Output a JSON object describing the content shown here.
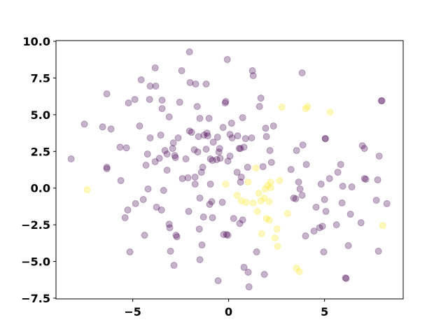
{
  "chart_data": {
    "type": "scatter",
    "xlim": [
      -9.0,
      9.1
    ],
    "ylim": [
      -7.55,
      10.05
    ],
    "xticks": [
      {
        "value": -5,
        "label": "−5"
      },
      0,
      5
    ],
    "yticks": [
      {
        "value": 10,
        "label": "10.0"
      },
      {
        "value": 7.5,
        "label": "7.5"
      },
      {
        "value": 5,
        "label": "5.0"
      },
      {
        "value": 2.5,
        "label": "2.5"
      },
      {
        "value": 0,
        "label": "0.0"
      },
      {
        "value": -2.5,
        "label": "−2.5"
      },
      {
        "value": -5,
        "label": "−5.0"
      },
      {
        "value": -7.5,
        "label": "−7.5"
      }
    ],
    "series": [
      {
        "color": "#440154",
        "alpha": 0.3,
        "x": [
          -8.21,
          -7.52,
          -6.57,
          -6.35,
          -6.13,
          -6.35,
          -6.35,
          -5.62,
          -5.66,
          -5.33,
          -5.4,
          -5.26,
          -5.15,
          -5.22,
          -4.89,
          -4.85,
          -4.64,
          -4.56,
          -4.45,
          -4.38,
          -4.31,
          -4.23,
          -4.2,
          -4.12,
          -4.09,
          -4.09,
          -3.83,
          -3.83,
          -3.8,
          -3.76,
          -3.61,
          -3.54,
          -3.5,
          -3.47,
          -3.47,
          -3.39,
          -3.32,
          -3.21,
          -3.21,
          -3.1,
          -3.07,
          -3.1,
          -3.03,
          -2.92,
          -2.88,
          -2.85,
          -2.81,
          -2.74,
          -2.77,
          -2.7,
          -2.63,
          -2.55,
          -2.45,
          -2.41,
          -2.23,
          -2.12,
          -2.08,
          -2.04,
          -2.04,
          -2.01,
          -1.93,
          -1.79,
          -1.75,
          -1.75,
          -1.72,
          -1.64,
          -1.61,
          -1.57,
          -1.53,
          -1.5,
          -1.5,
          -1.5,
          -1.42,
          -1.39,
          -1.35,
          -1.31,
          -1.28,
          -1.17,
          -1.17,
          -1.13,
          -1.09,
          -1.02,
          -0.99,
          -0.95,
          -0.95,
          -0.88,
          -0.84,
          -0.84,
          -0.8,
          -0.62,
          -0.58,
          -0.55,
          -0.51,
          -0.47,
          -0.44,
          -0.33,
          -0.29,
          -0.26,
          -0.18,
          -0.15,
          -0.11,
          -0.07,
          -0.04,
          -0.04,
          0.07,
          0.07,
          0.15,
          0.18,
          0.26,
          0.44,
          0.47,
          0.55,
          0.58,
          0.62,
          0.62,
          0.66,
          0.73,
          0.73,
          0.8,
          0.8,
          0.88,
          0.99,
          1.02,
          1.06,
          1.2,
          1.24,
          1.28,
          1.46,
          1.61,
          1.68,
          1.79,
          1.86,
          1.93,
          1.97,
          2.15,
          2.23,
          2.34,
          3.25,
          3.39,
          3.5,
          3.54,
          3.65,
          3.72,
          3.83,
          3.83,
          3.87,
          4.01,
          4.05,
          4.45,
          4.56,
          4.74,
          4.82,
          4.89,
          4.96,
          5.0,
          5.04,
          5.04,
          5.07,
          5.26,
          5.62,
          5.69,
          5.84,
          5.91,
          5.95,
          6.09,
          6.13,
          6.24,
          6.35,
          6.42,
          6.9,
          6.97,
          7.08,
          7.08,
          7.15,
          7.7,
          7.77,
          7.81,
          7.85,
          7.96,
          7.99,
          8.25
        ],
        "y": [
          1.99,
          4.36,
          4.17,
          6.42,
          4.03,
          1.42,
          1.32,
          0.51,
          2.79,
          2.74,
          -2.02,
          -1.49,
          -4.35,
          5.8,
          6.04,
          -1.06,
          4.23,
          7.38,
          -0.78,
          -3.21,
          1.56,
          2.32,
          -0.06,
          6.04,
          6.95,
          3.42,
          8.19,
          1.8,
          6.95,
          -1.3,
          2.03,
          3.61,
          -1.49,
          5.99,
          5.42,
          -0.16,
          2.56,
          1.22,
          2.32,
          -2.46,
          -2.7,
          4.85,
          -4.3,
          2.7,
          3.08,
          -5.26,
          2.22,
          -3.21,
          2.08,
          -3.32,
          3.42,
          5.85,
          8.0,
          0.65,
          1.99,
          0.7,
          -1.59,
          9.28,
          3.89,
          7.19,
          3.8,
          2.61,
          0.75,
          0.27,
          7.09,
          5.56,
          2.46,
          3.51,
          -2.79,
          -4.88,
          4.75,
          -0.68,
          1.08,
          -3.88,
          1.42,
          -1.97,
          3.61,
          7.09,
          2.65,
          3.75,
          3.56,
          4.75,
          -1.11,
          0.27,
          1.99,
          -0.92,
          -2.02,
          1.89,
          3.13,
          1.94,
          3.47,
          -6.31,
          2.46,
          2.7,
          2.03,
          -0.97,
          4.13,
          -3.16,
          5.8,
          5.9,
          -3.16,
          8.76,
          1.84,
          -3.21,
          3.66,
          2.18,
          4.42,
          3.42,
          -2.07,
          1.08,
          3.56,
          2.7,
          -2.41,
          0.41,
          2.7,
          0.75,
          4.8,
          -2.17,
          2.79,
          -5.4,
          3.37,
          1.42,
          -5.73,
          -6.73,
          3.42,
          8.0,
          7.66,
          -4.35,
          5.56,
          6.13,
          1.46,
          -5.88,
          4.08,
          3.51,
          2.56,
          1.75,
          4.23,
          1.27,
          -0.68,
          -0.73,
          2.56,
          0.41,
          -0.06,
          -0.49,
          7.85,
          2.94,
          -3.26,
          1.61,
          -2.93,
          -1.3,
          -2.7,
          0.27,
          -2.6,
          -4.35,
          -0.78,
          3.37,
          3.37,
          -1.59,
          0.65,
          -2.5,
          1.08,
          1.61,
          -1.01,
          0.13,
          -6.12,
          -6.16,
          -3.92,
          -1.78,
          0.08,
          -2.36,
          2.89,
          2.7,
          0.65,
          0.6,
          -0.83,
          0.56,
          -4.3,
          2.18,
          5.95,
          5.95,
          -1.06
        ]
      },
      {
        "color": "#fde725",
        "alpha": 0.3,
        "x": [
          -7.37,
          -0.15,
          0.44,
          0.66,
          0.91,
          1.02,
          1.28,
          1.42,
          1.5,
          1.57,
          1.68,
          1.72,
          1.86,
          1.9,
          1.97,
          2.04,
          2.12,
          2.12,
          2.19,
          2.19,
          2.41,
          2.52,
          2.55,
          2.66,
          2.77,
          3.07,
          3.54,
          3.69,
          4.01,
          4.12,
          5.29,
          8.03
        ],
        "y": [
          -0.11,
          0.27,
          -0.49,
          -0.87,
          -0.97,
          0.41,
          -1.01,
          1.37,
          -1.59,
          -0.35,
          -0.87,
          -3.11,
          -0.68,
          -0.06,
          -2.07,
          0.18,
          -0.92,
          -2.17,
          0.03,
          0.41,
          -3.4,
          -2.79,
          -3.97,
          0.51,
          5.51,
          -1.73,
          -5.45,
          -5.69,
          5.42,
          5.56,
          5.18,
          -2.55
        ]
      }
    ]
  }
}
